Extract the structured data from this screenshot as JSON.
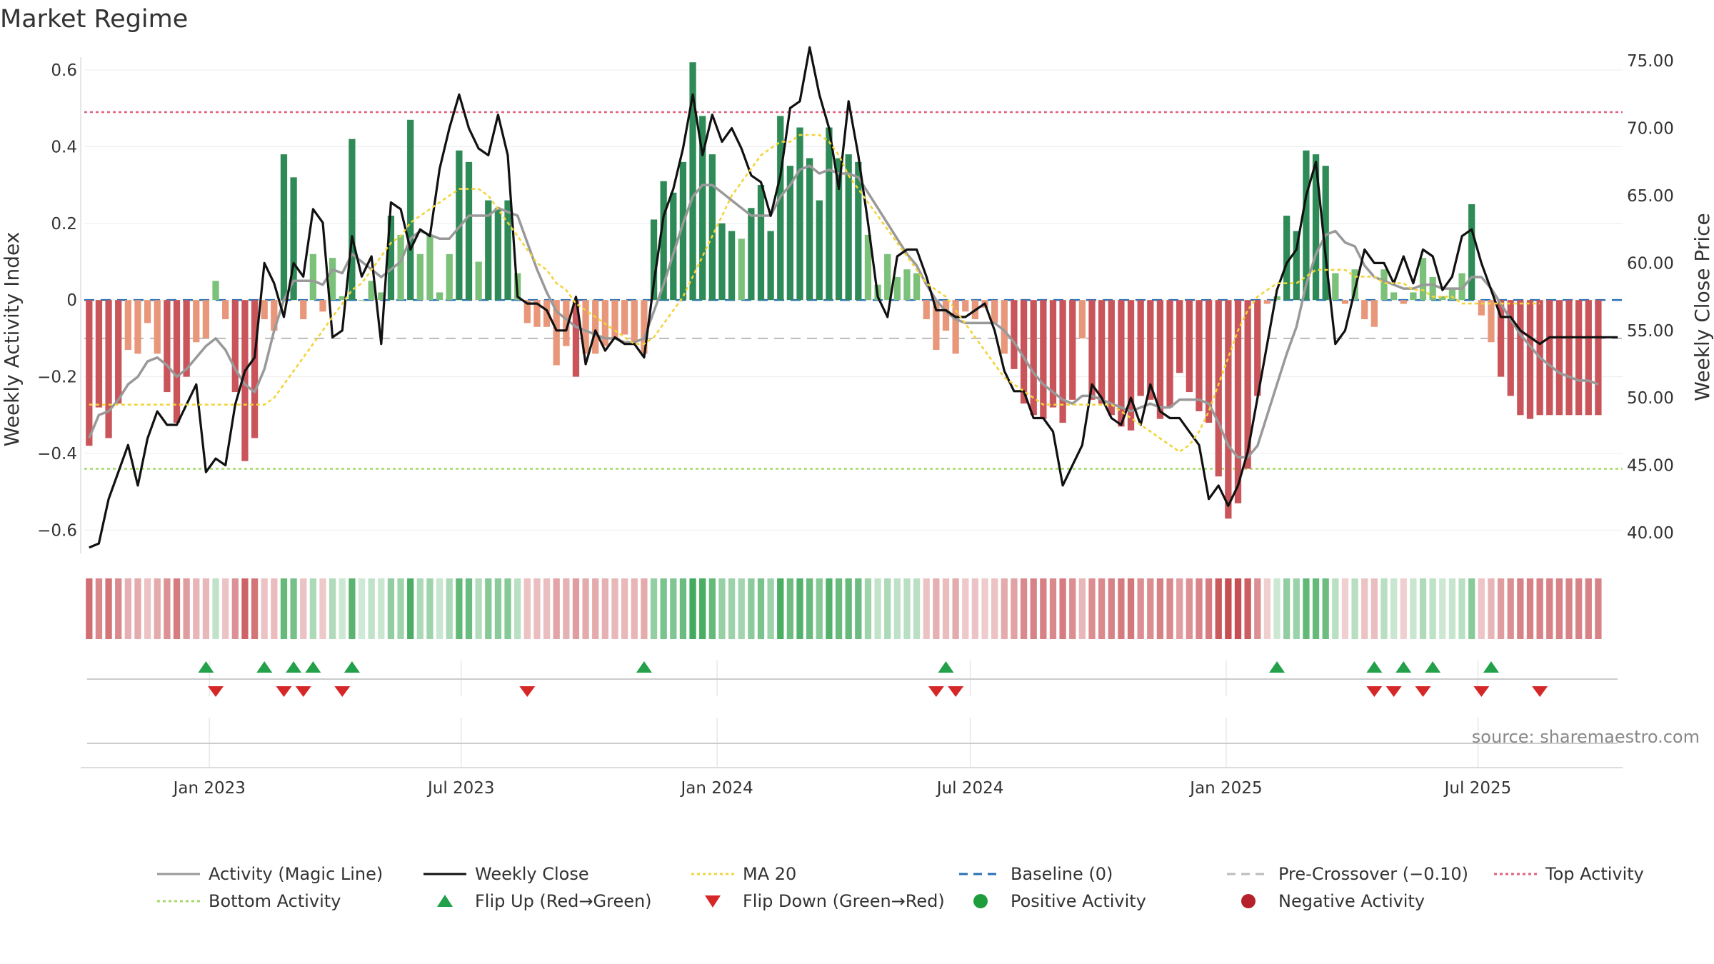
{
  "chart_data": {
    "type": "bar",
    "title": "Market Regime",
    "source": "source: sharemaestro.com",
    "ylabel_left": "Weekly Activity Index",
    "ylabel_right": "Weekly Close Price",
    "ylim_left": [
      -0.67,
      0.68
    ],
    "ylim_right": [
      38.2,
      76.6
    ],
    "yticks_left": [
      {
        "v": 0.6,
        "label": "0.6"
      },
      {
        "v": 0.4,
        "label": "0.4"
      },
      {
        "v": 0.2,
        "label": "0.2"
      },
      {
        "v": 0,
        "label": "0"
      },
      {
        "v": -0.2,
        "label": "−0.2"
      },
      {
        "v": -0.4,
        "label": "−0.4"
      },
      {
        "v": -0.6,
        "label": "−0.6"
      }
    ],
    "yticks_right": [
      {
        "v": 75,
        "label": "75.00"
      },
      {
        "v": 70,
        "label": "70.00"
      },
      {
        "v": 65,
        "label": "65.00"
      },
      {
        "v": 60,
        "label": "60.00"
      },
      {
        "v": 55,
        "label": "55.00"
      },
      {
        "v": 50,
        "label": "50.00"
      },
      {
        "v": 45,
        "label": "45.00"
      },
      {
        "v": 40,
        "label": "40.00"
      }
    ],
    "x_start": "2022-10-03",
    "x_weeks": 158,
    "xticks": [
      {
        "date": "2023-01-01",
        "label": "Jan 2023"
      },
      {
        "date": "2023-07-01",
        "label": "Jul 2023"
      },
      {
        "date": "2024-01-01",
        "label": "Jan 2024"
      },
      {
        "date": "2024-07-01",
        "label": "Jul 2024"
      },
      {
        "date": "2025-01-01",
        "label": "Jan 2025"
      },
      {
        "date": "2025-07-01",
        "label": "Jul 2025"
      }
    ],
    "reference_lines": {
      "top_activity": 0.49,
      "bottom_activity": -0.44,
      "pre_crossover": -0.1,
      "baseline": 0
    },
    "activity": [
      -0.38,
      -0.28,
      -0.36,
      -0.27,
      -0.13,
      -0.14,
      -0.06,
      -0.14,
      -0.24,
      -0.32,
      -0.2,
      -0.11,
      -0.1,
      0.05,
      -0.05,
      -0.24,
      -0.42,
      -0.36,
      -0.05,
      -0.08,
      0.38,
      0.32,
      -0.05,
      0.12,
      -0.03,
      0.11,
      0.01,
      0.42,
      0.0,
      0.05,
      0.02,
      0.22,
      0.17,
      0.47,
      0.12,
      0.17,
      0.02,
      0.12,
      0.39,
      0.36,
      0.1,
      0.26,
      0.24,
      0.26,
      0.07,
      -0.06,
      -0.07,
      -0.07,
      -0.17,
      -0.12,
      -0.2,
      -0.14,
      -0.14,
      -0.12,
      -0.1,
      -0.09,
      -0.11,
      -0.14,
      0.21,
      0.31,
      0.28,
      0.36,
      0.62,
      0.48,
      0.38,
      0.2,
      0.18,
      0.16,
      0.24,
      0.3,
      0.18,
      0.48,
      0.35,
      0.45,
      0.37,
      0.26,
      0.45,
      0.37,
      0.38,
      0.36,
      0.17,
      0.04,
      0.12,
      0.06,
      0.08,
      0.07,
      -0.05,
      -0.13,
      -0.08,
      -0.14,
      -0.03,
      -0.05,
      -0.02,
      -0.06,
      -0.14,
      -0.18,
      -0.27,
      -0.3,
      -0.31,
      -0.28,
      -0.32,
      -0.26,
      -0.1,
      -0.26,
      -0.27,
      -0.3,
      -0.33,
      -0.34,
      -0.25,
      -0.26,
      -0.31,
      -0.28,
      -0.19,
      -0.24,
      -0.29,
      -0.32,
      -0.46,
      -0.57,
      -0.53,
      -0.44,
      -0.25,
      -0.01,
      0.01,
      0.22,
      0.18,
      0.39,
      0.38,
      0.35,
      0.07,
      -0.01,
      0.08,
      -0.05,
      -0.07,
      0.08,
      0.02,
      -0.01,
      0.02,
      0.11,
      0.06,
      0.01,
      0.03,
      0.07,
      0.25,
      -0.04,
      -0.11,
      -0.2,
      -0.25,
      -0.3,
      -0.31,
      -0.3,
      -0.3,
      -0.3,
      -0.3,
      -0.3,
      -0.3,
      -0.3
    ],
    "series": [
      {
        "name": "Activity (Magic Line)",
        "color": "#999999",
        "values": [
          -0.36,
          -0.3,
          -0.29,
          -0.26,
          -0.22,
          -0.2,
          -0.16,
          -0.15,
          -0.17,
          -0.2,
          -0.18,
          -0.15,
          -0.12,
          -0.1,
          -0.13,
          -0.18,
          -0.22,
          -0.24,
          -0.18,
          -0.08,
          0.0,
          0.05,
          0.05,
          0.05,
          0.04,
          0.08,
          0.07,
          0.12,
          0.1,
          0.08,
          0.06,
          0.08,
          0.1,
          0.16,
          0.18,
          0.17,
          0.16,
          0.16,
          0.19,
          0.22,
          0.22,
          0.22,
          0.24,
          0.23,
          0.22,
          0.15,
          0.08,
          0.02,
          -0.03,
          -0.05,
          -0.07,
          -0.08,
          -0.09,
          -0.1,
          -0.1,
          -0.11,
          -0.11,
          -0.1,
          -0.03,
          0.04,
          0.12,
          0.2,
          0.27,
          0.3,
          0.3,
          0.28,
          0.26,
          0.24,
          0.22,
          0.22,
          0.22,
          0.27,
          0.3,
          0.34,
          0.35,
          0.33,
          0.34,
          0.33,
          0.33,
          0.32,
          0.28,
          0.24,
          0.2,
          0.16,
          0.12,
          0.09,
          0.04,
          0.0,
          -0.03,
          -0.05,
          -0.06,
          -0.06,
          -0.06,
          -0.06,
          -0.08,
          -0.11,
          -0.15,
          -0.19,
          -0.22,
          -0.24,
          -0.26,
          -0.27,
          -0.25,
          -0.25,
          -0.26,
          -0.27,
          -0.28,
          -0.29,
          -0.28,
          -0.27,
          -0.28,
          -0.28,
          -0.26,
          -0.26,
          -0.26,
          -0.27,
          -0.32,
          -0.38,
          -0.41,
          -0.41,
          -0.38,
          -0.3,
          -0.22,
          -0.14,
          -0.07,
          0.04,
          0.12,
          0.17,
          0.18,
          0.15,
          0.14,
          0.09,
          0.06,
          0.05,
          0.04,
          0.03,
          0.03,
          0.04,
          0.04,
          0.03,
          0.03,
          0.03,
          0.06,
          0.06,
          0.03,
          -0.01,
          -0.05,
          -0.09,
          -0.12,
          -0.15,
          -0.17,
          -0.19,
          -0.2,
          -0.21,
          -0.21,
          -0.22
        ]
      },
      {
        "name": "Weekly Close",
        "color": "#111111",
        "values": [
          38.9,
          39.2,
          42.5,
          44.5,
          46.5,
          43.5,
          47.0,
          49.0,
          48.0,
          48.0,
          49.5,
          51.0,
          44.5,
          45.5,
          45.0,
          49.5,
          52.0,
          53.0,
          60.0,
          58.5,
          56.0,
          60.0,
          59.0,
          64.0,
          63.0,
          54.5,
          55.0,
          62.0,
          59.0,
          60.5,
          54.0,
          64.5,
          64.0,
          61.0,
          62.5,
          62.0,
          67.0,
          70.0,
          72.5,
          70.0,
          68.5,
          68.0,
          71.0,
          68.0,
          57.5,
          57.0,
          57.0,
          56.5,
          55.0,
          55.0,
          57.5,
          52.5,
          55.0,
          53.5,
          54.5,
          54.0,
          54.0,
          53.0,
          58.5,
          63.5,
          65.5,
          68.5,
          72.5,
          68.0,
          71.0,
          69.0,
          70.0,
          68.5,
          66.5,
          66.0,
          63.5,
          66.5,
          71.5,
          72.0,
          76.0,
          72.5,
          70.0,
          65.5,
          72.0,
          68.0,
          63.0,
          57.5,
          56.0,
          60.5,
          61.0,
          61.0,
          59.0,
          56.5,
          56.5,
          56.0,
          56.0,
          56.5,
          57.0,
          55.0,
          52.0,
          50.5,
          50.5,
          48.5,
          48.5,
          47.5,
          43.5,
          45.0,
          46.5,
          51.0,
          50.0,
          48.5,
          48.0,
          50.0,
          48.0,
          51.0,
          49.0,
          48.5,
          48.5,
          47.5,
          46.5,
          42.5,
          43.5,
          42.0,
          43.5,
          46.0,
          50.0,
          54.0,
          58.0,
          60.0,
          61.0,
          65.0,
          67.5,
          60.5,
          54.0,
          55.0,
          58.0,
          61.0,
          60.0,
          60.0,
          58.5,
          60.5,
          58.5,
          61.0,
          60.5,
          58.0,
          59.0,
          62.0,
          62.5,
          60.0,
          58.0,
          56.0,
          56.0,
          55.0,
          54.5,
          54.0,
          54.5,
          54.5,
          54.5,
          54.5,
          54.5,
          54.5,
          54.5,
          54.5
        ]
      },
      {
        "name": "MA 20",
        "color": "#f2d43a",
        "values": [
          49.5,
          49.5,
          49.5,
          49.5,
          49.5,
          49.5,
          49.5,
          49.5,
          49.5,
          49.5,
          49.5,
          49.5,
          49.5,
          49.5,
          49.5,
          49.5,
          49.5,
          49.5,
          49.5,
          50.0,
          51.0,
          52.0,
          53.0,
          54.0,
          55.0,
          56.0,
          57.0,
          58.0,
          58.5,
          59.5,
          60.5,
          61.5,
          62.0,
          63.0,
          63.5,
          64.0,
          64.5,
          65.0,
          65.5,
          65.5,
          65.5,
          65.0,
          64.0,
          63.0,
          62.0,
          61.0,
          60.0,
          59.5,
          58.5,
          58.0,
          57.0,
          56.5,
          56.0,
          55.5,
          55.0,
          54.5,
          54.0,
          54.0,
          54.5,
          55.5,
          56.5,
          57.5,
          59.0,
          60.5,
          62.0,
          63.5,
          65.0,
          66.0,
          67.0,
          68.0,
          68.5,
          69.0,
          69.0,
          69.5,
          69.5,
          69.5,
          69.0,
          68.0,
          66.5,
          65.5,
          64.5,
          63.5,
          62.5,
          61.5,
          60.5,
          59.5,
          58.5,
          58.0,
          57.5,
          56.5,
          55.5,
          54.5,
          53.5,
          52.5,
          51.5,
          51.0,
          50.5,
          50.0,
          49.5,
          49.5,
          49.5,
          49.5,
          49.5,
          49.5,
          49.5,
          49.5,
          49.0,
          48.5,
          48.0,
          47.5,
          47.0,
          46.5,
          46.0,
          46.5,
          47.5,
          49.0,
          51.0,
          53.0,
          55.0,
          56.5,
          57.5,
          58.0,
          58.5,
          58.5,
          58.5,
          59.0,
          59.5,
          59.5,
          59.5,
          59.5,
          59.0,
          59.0,
          59.0,
          58.5,
          58.5,
          58.5,
          58.0,
          58.0,
          57.5,
          57.5,
          57.5,
          57.0,
          57.0,
          57.0,
          57.0,
          57.0,
          57.0,
          57.0,
          57.0,
          57.0
        ]
      }
    ],
    "flips": {
      "up": [
        12,
        18,
        21,
        23,
        27,
        57,
        88,
        122,
        132,
        135,
        138,
        144
      ],
      "down": [
        13,
        20,
        22,
        26,
        45,
        87,
        89,
        132,
        134,
        137,
        143,
        149
      ]
    },
    "legend": [
      {
        "label": "Activity (Magic Line)",
        "kind": "line",
        "color": "#999999",
        "dash": ""
      },
      {
        "label": "Weekly Close",
        "kind": "line",
        "color": "#111111",
        "dash": ""
      },
      {
        "label": "MA 20",
        "kind": "line",
        "color": "#f2d43a",
        "dash": "4,4"
      },
      {
        "label": "Baseline (0)",
        "kind": "line",
        "color": "#2a6fb4",
        "dash": "12,8"
      },
      {
        "label": "Pre-Crossover (−0.10)",
        "kind": "line",
        "color": "#bbbbbb",
        "dash": "12,8"
      },
      {
        "label": "Top Activity",
        "kind": "line",
        "color": "#e0607e",
        "dash": "4,4"
      },
      {
        "label": "Bottom Activity",
        "kind": "line",
        "color": "#a6d96a",
        "dash": "4,4"
      },
      {
        "label": "Flip Up (Red→Green)",
        "kind": "tri-up",
        "color": "#22a04a",
        "dash": ""
      },
      {
        "label": "Flip Down (Green→Red)",
        "kind": "tri-down",
        "color": "#d62728",
        "dash": ""
      },
      {
        "label": "Positive Activity",
        "kind": "dot",
        "color": "#1f9d3c",
        "dash": ""
      },
      {
        "label": "Negative Activity",
        "kind": "dot",
        "color": "#b5202a",
        "dash": ""
      }
    ],
    "colors": {
      "pos_strong": "#2e8b57",
      "pos_light": "#7cc17a",
      "neg_strong": "#c9545a",
      "neg_light": "#e8977a"
    }
  }
}
